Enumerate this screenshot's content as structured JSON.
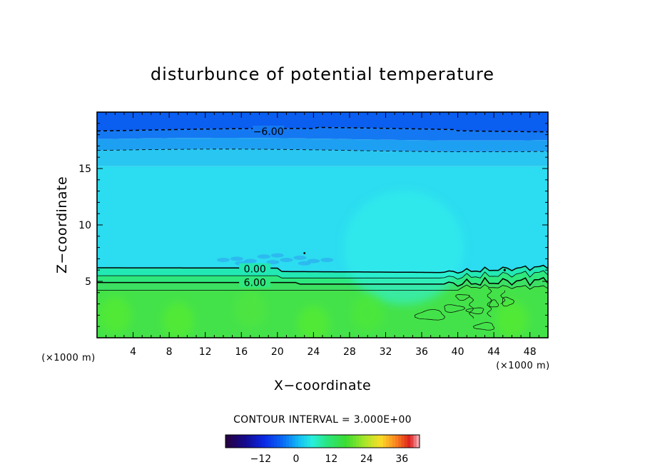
{
  "chart_data": {
    "type": "heatmap",
    "title": "disturbunce of potential temperature",
    "xlabel": "X−coordinate",
    "ylabel": "Z−coordinate",
    "x_unit": "(×1000 m)",
    "z_unit": "(×1000 m)",
    "xlim": [
      0,
      50
    ],
    "ylim": [
      0,
      20
    ],
    "x_ticks": [
      4,
      8,
      12,
      16,
      20,
      24,
      28,
      32,
      36,
      40,
      44,
      48
    ],
    "y_ticks": [
      5,
      10,
      15
    ],
    "contour_interval_text": "CONTOUR INTERVAL = 3.000E+00",
    "contour_labels": [
      {
        "text": "−6.00",
        "x": 19,
        "z": 18.3
      },
      {
        "text": "0.00",
        "x": 17.5,
        "z": 6.1
      },
      {
        "text": "6.00",
        "x": 17.5,
        "z": 4.9
      }
    ],
    "colorbar": {
      "min": -24,
      "max": 42,
      "tick_values": [
        -12,
        0,
        12,
        24,
        36
      ],
      "tick_labels": [
        "−12",
        "0",
        "12",
        "24",
        "36"
      ]
    },
    "colors": {
      "top_band": "#0a5ef0",
      "upper_blue": "#1478f2",
      "mid_blue": "#1ea0f2",
      "cyan": "#2cdcf0",
      "cyan_bright": "#33f2e8",
      "teal": "#22e8b4",
      "green_teal": "#2ee87e",
      "green": "#44e24a",
      "green_bright": "#5aee2c"
    }
  }
}
